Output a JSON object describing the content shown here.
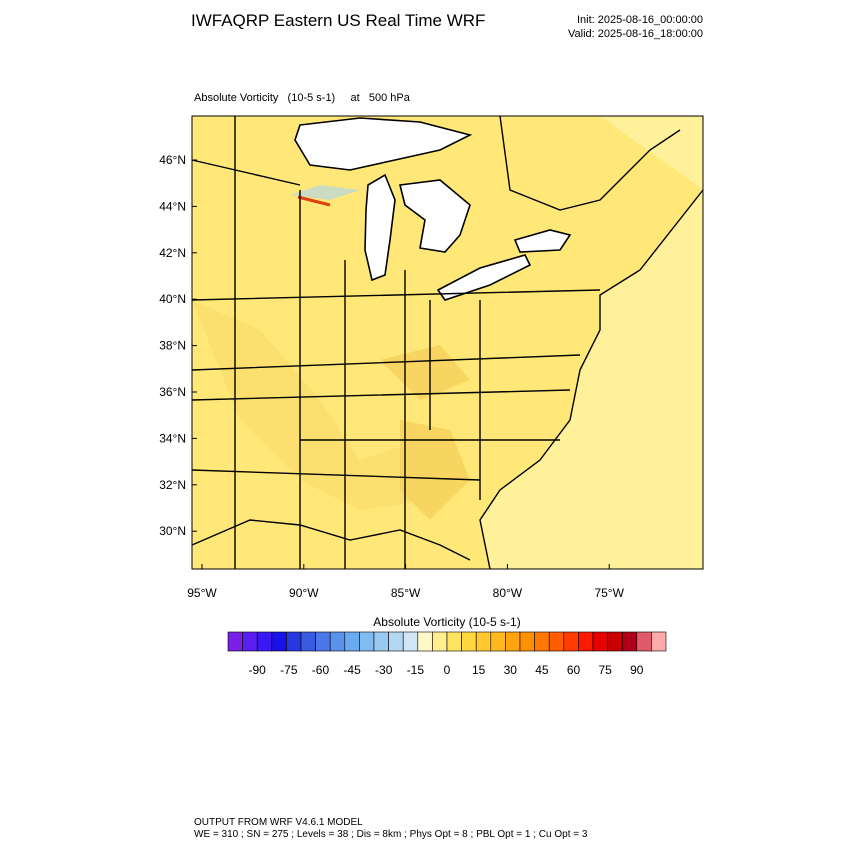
{
  "header": {
    "title": "IWFAQRP Eastern US Real Time WRF",
    "init": "Init: 2025-08-16_00:00:00",
    "valid": "Valid: 2025-08-16_18:00:00"
  },
  "plot": {
    "subtitle": "Absolute Vorticity   (10-5 s-1)     at   500 hPa",
    "lat_labels": [
      "46°N",
      "44°N",
      "42°N",
      "40°N",
      "38°N",
      "36°N",
      "34°N",
      "32°N",
      "30°N"
    ],
    "lon_labels": [
      "95°W",
      "90°W",
      "85°W",
      "80°W",
      "75°W"
    ]
  },
  "colorbar": {
    "title": "Absolute Vorticity  (10-5 s-1)",
    "labels": [
      -90,
      -75,
      -60,
      -45,
      -30,
      -15,
      0,
      15,
      30,
      45,
      60,
      75,
      90
    ],
    "colors": [
      "#7a1fe6",
      "#5a1ef0",
      "#3a18f0",
      "#1a10e8",
      "#2838e0",
      "#3a5ae0",
      "#4a78e8",
      "#5a92ec",
      "#6aaaee",
      "#80bcf0",
      "#9acaf2",
      "#b4d8f4",
      "#d0e6f6",
      "#fff8c8",
      "#ffee90",
      "#ffe460",
      "#ffd840",
      "#ffc830",
      "#ffb820",
      "#ffa410",
      "#ff9000",
      "#ff7800",
      "#ff5c00",
      "#ff3c00",
      "#ff1800",
      "#e60000",
      "#c80000",
      "#b00018",
      "#e05a6a",
      "#ffaaaa"
    ]
  },
  "footer": {
    "line1": "OUTPUT FROM WRF V4.6.1 MODEL",
    "line2": "WE = 310 ; SN = 275 ; Levels = 38 ; Dis = 8km ; Phys Opt = 8 ; PBL Opt = 1 ; Cu Opt = 3"
  }
}
